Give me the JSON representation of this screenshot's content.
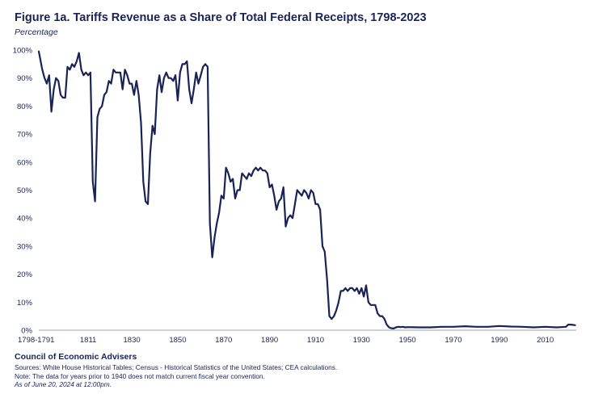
{
  "chart_data": {
    "type": "line",
    "title": "Figure 1a. Tariffs Revenue as a Share of Total Federal Receipts, 1798-2023",
    "subtitle": "Percentage",
    "xlabel": "",
    "ylabel": "",
    "xlim": [
      1789.5,
      2023.5
    ],
    "ylim": [
      0,
      100
    ],
    "grid": false,
    "y_ticks": [
      0,
      10,
      20,
      30,
      40,
      50,
      60,
      70,
      80,
      90,
      100
    ],
    "y_tick_labels": [
      "0%",
      "10%",
      "20%",
      "30%",
      "40%",
      "50%",
      "60%",
      "70%",
      "80%",
      "90%",
      "100%"
    ],
    "x_ticks": [
      1789.5,
      1811,
      1830,
      1850,
      1870,
      1890,
      1910,
      1930,
      1950,
      1970,
      1990,
      2010
    ],
    "x_tick_labels": [
      "1798-1791",
      "1811",
      "1830",
      "1850",
      "1870",
      "1890",
      "1910",
      "1930",
      "1950",
      "1970",
      "1990",
      "2010"
    ],
    "color": "#1a2355",
    "series": [
      {
        "x": [
          1789.5,
          1791,
          1792,
          1793,
          1794,
          1795,
          1796,
          1797,
          1798,
          1799,
          1800,
          1801,
          1802,
          1803,
          1804,
          1805,
          1806,
          1807,
          1808,
          1809,
          1810,
          1811,
          1812,
          1813,
          1814,
          1815,
          1816,
          1817,
          1818,
          1819,
          1820,
          1821,
          1822,
          1823,
          1824,
          1825,
          1826,
          1827,
          1828,
          1829,
          1830,
          1831,
          1832,
          1833,
          1834,
          1835,
          1836,
          1837,
          1838,
          1839,
          1840,
          1841,
          1842,
          1843,
          1844,
          1845,
          1846,
          1847,
          1848,
          1849,
          1850,
          1851,
          1852,
          1853,
          1854,
          1855,
          1856,
          1857,
          1858,
          1859,
          1860,
          1861,
          1862,
          1863,
          1864,
          1865,
          1866,
          1867,
          1868,
          1869,
          1870,
          1871,
          1872,
          1873,
          1874,
          1875,
          1876,
          1877,
          1878,
          1879,
          1880,
          1881,
          1882,
          1883,
          1884,
          1885,
          1886,
          1887,
          1888,
          1889,
          1890,
          1891,
          1892,
          1893,
          1894,
          1895,
          1896,
          1897,
          1898,
          1899,
          1900,
          1901,
          1902,
          1903,
          1904,
          1905,
          1906,
          1907,
          1908,
          1909,
          1910,
          1911,
          1912,
          1913,
          1914,
          1915,
          1916,
          1917,
          1918,
          1919,
          1920,
          1921,
          1922,
          1923,
          1924,
          1925,
          1926,
          1927,
          1928,
          1929,
          1930,
          1931,
          1932,
          1933,
          1934,
          1935,
          1936,
          1937,
          1938,
          1939,
          1940,
          1941,
          1942,
          1943,
          1944,
          1945,
          1946,
          1947,
          1948,
          1949,
          1950,
          1955,
          1960,
          1965,
          1970,
          1975,
          1980,
          1985,
          1990,
          1995,
          2000,
          2005,
          2010,
          2015,
          2017,
          2019,
          2020,
          2021,
          2022,
          2023
        ],
        "y": [
          99.5,
          93,
          90,
          88,
          91,
          78,
          86,
          90,
          89,
          84,
          83,
          83,
          94,
          93,
          95,
          94,
          96,
          99,
          93,
          91,
          92,
          91,
          92,
          53,
          46,
          76,
          79,
          80,
          84,
          85,
          89,
          88,
          93,
          92,
          92,
          92,
          86,
          93,
          91,
          88,
          88,
          84,
          89,
          84,
          74,
          53,
          46,
          45,
          63,
          73,
          70,
          86,
          91,
          85,
          90,
          92,
          90,
          90,
          89,
          91,
          82,
          92,
          95,
          95,
          96,
          86,
          81,
          86,
          92,
          88,
          91,
          94,
          95,
          94,
          38,
          26,
          33,
          38,
          42,
          48,
          47,
          58,
          56,
          53,
          54,
          47,
          50,
          50,
          56,
          55,
          54,
          56,
          55,
          57,
          58,
          57,
          58,
          57,
          57,
          56,
          51,
          52,
          48,
          43,
          46,
          47,
          51,
          37,
          40,
          41,
          40,
          45,
          50,
          49,
          48,
          50,
          49,
          47,
          50,
          49,
          45,
          45,
          43,
          30,
          28,
          18,
          5,
          4,
          5,
          7,
          10,
          14,
          14,
          15,
          14,
          15,
          15,
          14,
          15,
          13,
          15,
          12,
          16,
          10,
          9,
          9,
          9,
          6,
          5,
          5,
          4,
          2,
          1,
          0.7,
          0.6,
          1,
          1.2,
          1.1,
          1.2,
          1,
          1.1,
          1,
          1,
          1.2,
          1.2,
          1.4,
          1.2,
          1.2,
          1.5,
          1.3,
          1.2,
          1,
          1.2,
          1,
          1.1,
          1.2,
          2,
          2,
          1.9,
          1.8
        ]
      }
    ]
  },
  "footer": {
    "org": "Council of Economic Advisers",
    "sources": "Sources: White House Historical Tables; Census - Historical Statistics of the United States; CEA calculations.",
    "note": "Note: The data for years prior to 1940 does not match current fiscal year convention.",
    "asof": "As of June 20, 2024 at 12:00pm."
  }
}
